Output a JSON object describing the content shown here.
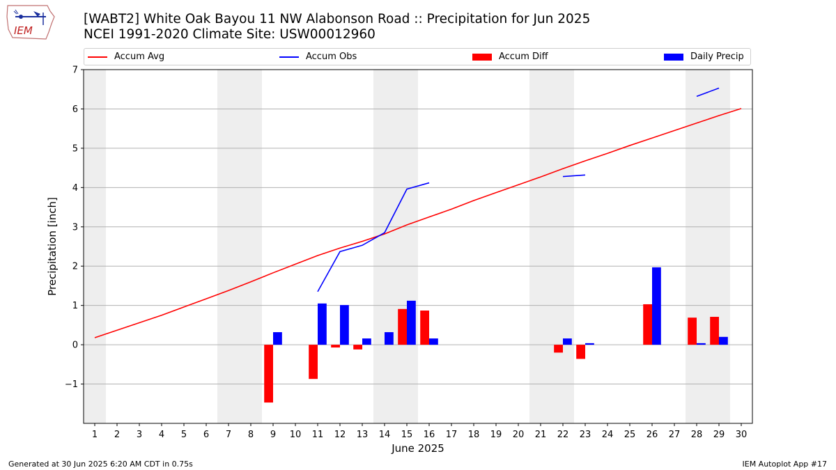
{
  "title": {
    "line1": "[WABT2] White Oak Bayou 11 NW Alabonson Road :: Precipitation for Jun 2025",
    "line2": "NCEI 1991-2020 Climate Site: USW00012960"
  },
  "logo": {
    "text": "IEM"
  },
  "legend": {
    "items": [
      {
        "label": "Accum Avg",
        "kind": "line",
        "color": "#ff0000"
      },
      {
        "label": "Accum Obs",
        "kind": "line",
        "color": "#0000ff"
      },
      {
        "label": "Accum Diff",
        "kind": "box",
        "color": "#ff0000"
      },
      {
        "label": "Daily Precip",
        "kind": "box",
        "color": "#0000ff"
      }
    ]
  },
  "footer": {
    "left": "Generated at 30 Jun 2025 6:20 AM CDT in 0.75s",
    "right": "IEM Autoplot App #17"
  },
  "chart_data": {
    "type": "bar",
    "xlabel": "June 2025",
    "ylabel": "Precipitation [inch]",
    "xlim": [
      0.5,
      30.5
    ],
    "ylim": [
      -2,
      7
    ],
    "xticks": [
      "1",
      "2",
      "3",
      "4",
      "5",
      "6",
      "7",
      "8",
      "9",
      "10",
      "11",
      "12",
      "13",
      "14",
      "15",
      "16",
      "17",
      "18",
      "19",
      "20",
      "21",
      "22",
      "23",
      "24",
      "25",
      "26",
      "27",
      "28",
      "29",
      "30"
    ],
    "yticks": [
      -1,
      0,
      1,
      2,
      3,
      4,
      5,
      6,
      7
    ],
    "ytick_labels": [
      "−1",
      "0",
      "1",
      "2",
      "3",
      "4",
      "5",
      "6",
      "7"
    ],
    "weekend_shading": [
      [
        1,
        1
      ],
      [
        7,
        8
      ],
      [
        14,
        15
      ],
      [
        21,
        22
      ],
      [
        28,
        29
      ]
    ],
    "grid": "horizontal",
    "legend_position": "top",
    "series": [
      {
        "name": "Accum Avg",
        "type": "line",
        "color": "#ff0000",
        "x": [
          1,
          2,
          3,
          4,
          5,
          6,
          7,
          8,
          9,
          10,
          11,
          12,
          13,
          14,
          15,
          16,
          17,
          18,
          19,
          20,
          21,
          22,
          23,
          24,
          25,
          26,
          27,
          28,
          29,
          30
        ],
        "values": [
          0.18,
          0.37,
          0.56,
          0.75,
          0.96,
          1.17,
          1.38,
          1.6,
          1.83,
          2.05,
          2.27,
          2.46,
          2.63,
          2.82,
          3.05,
          3.25,
          3.45,
          3.67,
          3.87,
          4.07,
          4.27,
          4.48,
          4.68,
          4.87,
          5.07,
          5.26,
          5.45,
          5.64,
          5.83,
          6.01
        ]
      },
      {
        "name": "Accum Obs",
        "type": "line",
        "color": "#0000ff",
        "segments": [
          {
            "x": [
              11,
              12,
              13,
              14,
              15,
              16
            ],
            "values": [
              1.35,
              2.37,
              2.53,
              2.85,
              3.96,
              4.12
            ]
          },
          {
            "x": [
              22,
              23
            ],
            "values": [
              4.28,
              4.32
            ]
          },
          {
            "x": [
              28,
              29
            ],
            "values": [
              6.32,
              6.53
            ]
          }
        ]
      },
      {
        "name": "Accum Diff",
        "type": "bar",
        "color": "#ff0000",
        "x": [
          9,
          11,
          12,
          13,
          15,
          16,
          22,
          23,
          26,
          28,
          29
        ],
        "values": [
          -1.47,
          -0.87,
          -0.07,
          -0.12,
          0.91,
          0.87,
          -0.2,
          -0.36,
          1.03,
          0.69,
          0.71
        ]
      },
      {
        "name": "Daily Precip",
        "type": "bar",
        "color": "#0000ff",
        "x": [
          9,
          11,
          12,
          13,
          14,
          15,
          16,
          22,
          23,
          26,
          28,
          29
        ],
        "values": [
          0.32,
          1.05,
          1.01,
          0.16,
          0.32,
          1.12,
          0.16,
          0.16,
          0.04,
          1.97,
          0.04,
          0.2
        ]
      }
    ]
  }
}
